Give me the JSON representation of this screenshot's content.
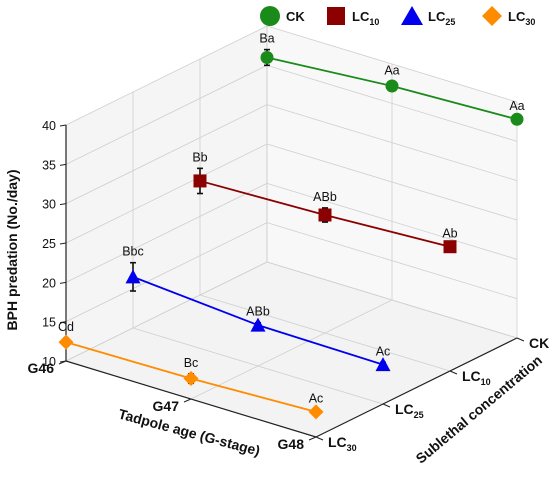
{
  "chart_data": {
    "type": "line",
    "zlabel": "BPH predation (No./day)",
    "xlabel": "Tadpole age (G-stage)",
    "ylabel": "Sublethal concentration",
    "x_categories": [
      "G46",
      "G47",
      "G48"
    ],
    "y_categories": [
      {
        "base": "CK",
        "sub": ""
      },
      {
        "base": "LC",
        "sub": "10"
      },
      {
        "base": "LC",
        "sub": "25"
      },
      {
        "base": "LC",
        "sub": "30"
      }
    ],
    "z_ticks": [
      10,
      15,
      20,
      25,
      30,
      35,
      40
    ],
    "zlim": [
      10,
      40
    ],
    "series": [
      {
        "name": "CK",
        "name_base": "CK",
        "name_sub": "",
        "marker": "circle",
        "color": "#1a8a1a",
        "values": [
          36.0,
          37.2,
          37.8
        ],
        "errors": [
          1.0,
          0.6,
          0.3
        ],
        "labels": [
          "Ba",
          "Aa",
          "Aa"
        ]
      },
      {
        "name": "LC10",
        "name_base": "LC",
        "name_sub": "10",
        "marker": "square",
        "color": "#8b0000",
        "values": [
          24.5,
          25.0,
          25.8
        ],
        "errors": [
          1.6,
          0.9,
          0.3
        ],
        "labels": [
          "Bb",
          "ABb",
          "Ab"
        ]
      },
      {
        "name": "LC25",
        "name_base": "LC",
        "name_sub": "25",
        "marker": "triangle",
        "color": "#0000ee",
        "values": [
          16.5,
          15.2,
          15.0
        ],
        "errors": [
          1.8,
          0.3,
          0.3
        ],
        "labels": [
          "Bbc",
          "ABb",
          "Ac"
        ]
      },
      {
        "name": "LC30",
        "name_base": "LC",
        "name_sub": "30",
        "marker": "diamond",
        "color": "#ff8c00",
        "values": [
          12.4,
          12.6,
          13.2
        ],
        "errors": [
          0.5,
          0.6,
          0.3
        ],
        "labels": [
          "Cd",
          "Bc",
          "Ac"
        ]
      }
    ],
    "legend_position": "top",
    "grid": true
  }
}
